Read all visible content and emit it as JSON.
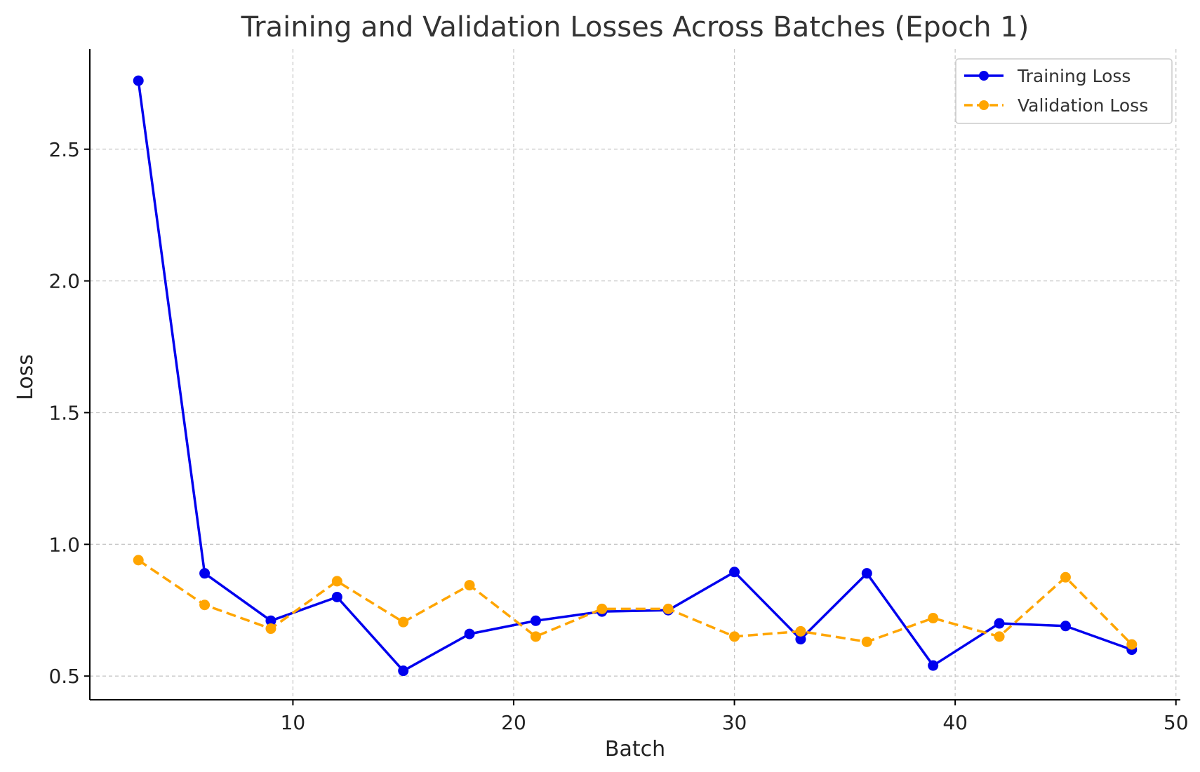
{
  "chart_data": {
    "type": "line",
    "title": "Training and Validation Losses Across Batches (Epoch 1)",
    "xlabel": "Batch",
    "ylabel": "Loss",
    "xlim": [
      0.8,
      50.2
    ],
    "ylim": [
      0.41,
      2.88
    ],
    "xticks": [
      10,
      20,
      30,
      40,
      50
    ],
    "yticks": [
      0.5,
      1.0,
      1.5,
      2.0,
      2.5
    ],
    "ytick_labels": [
      "0.5",
      "1.0",
      "1.5",
      "2.0",
      "2.5"
    ],
    "grid": true,
    "legend_position": "top-right",
    "x": [
      3,
      6,
      9,
      12,
      15,
      18,
      21,
      24,
      27,
      30,
      33,
      36,
      39,
      42,
      45,
      48
    ],
    "series": [
      {
        "name": "Training Loss",
        "color": "#0000ee",
        "style": "solid",
        "values": [
          2.76,
          0.89,
          0.71,
          0.8,
          0.52,
          0.66,
          0.71,
          0.745,
          0.75,
          0.895,
          0.64,
          0.89,
          0.54,
          0.7,
          0.69,
          0.6
        ]
      },
      {
        "name": "Validation Loss",
        "color": "#ffa500",
        "style": "dashed",
        "values": [
          0.94,
          0.77,
          0.68,
          0.86,
          0.705,
          0.845,
          0.65,
          0.755,
          0.755,
          0.65,
          0.67,
          0.63,
          0.72,
          0.65,
          0.875,
          0.62
        ]
      }
    ]
  }
}
